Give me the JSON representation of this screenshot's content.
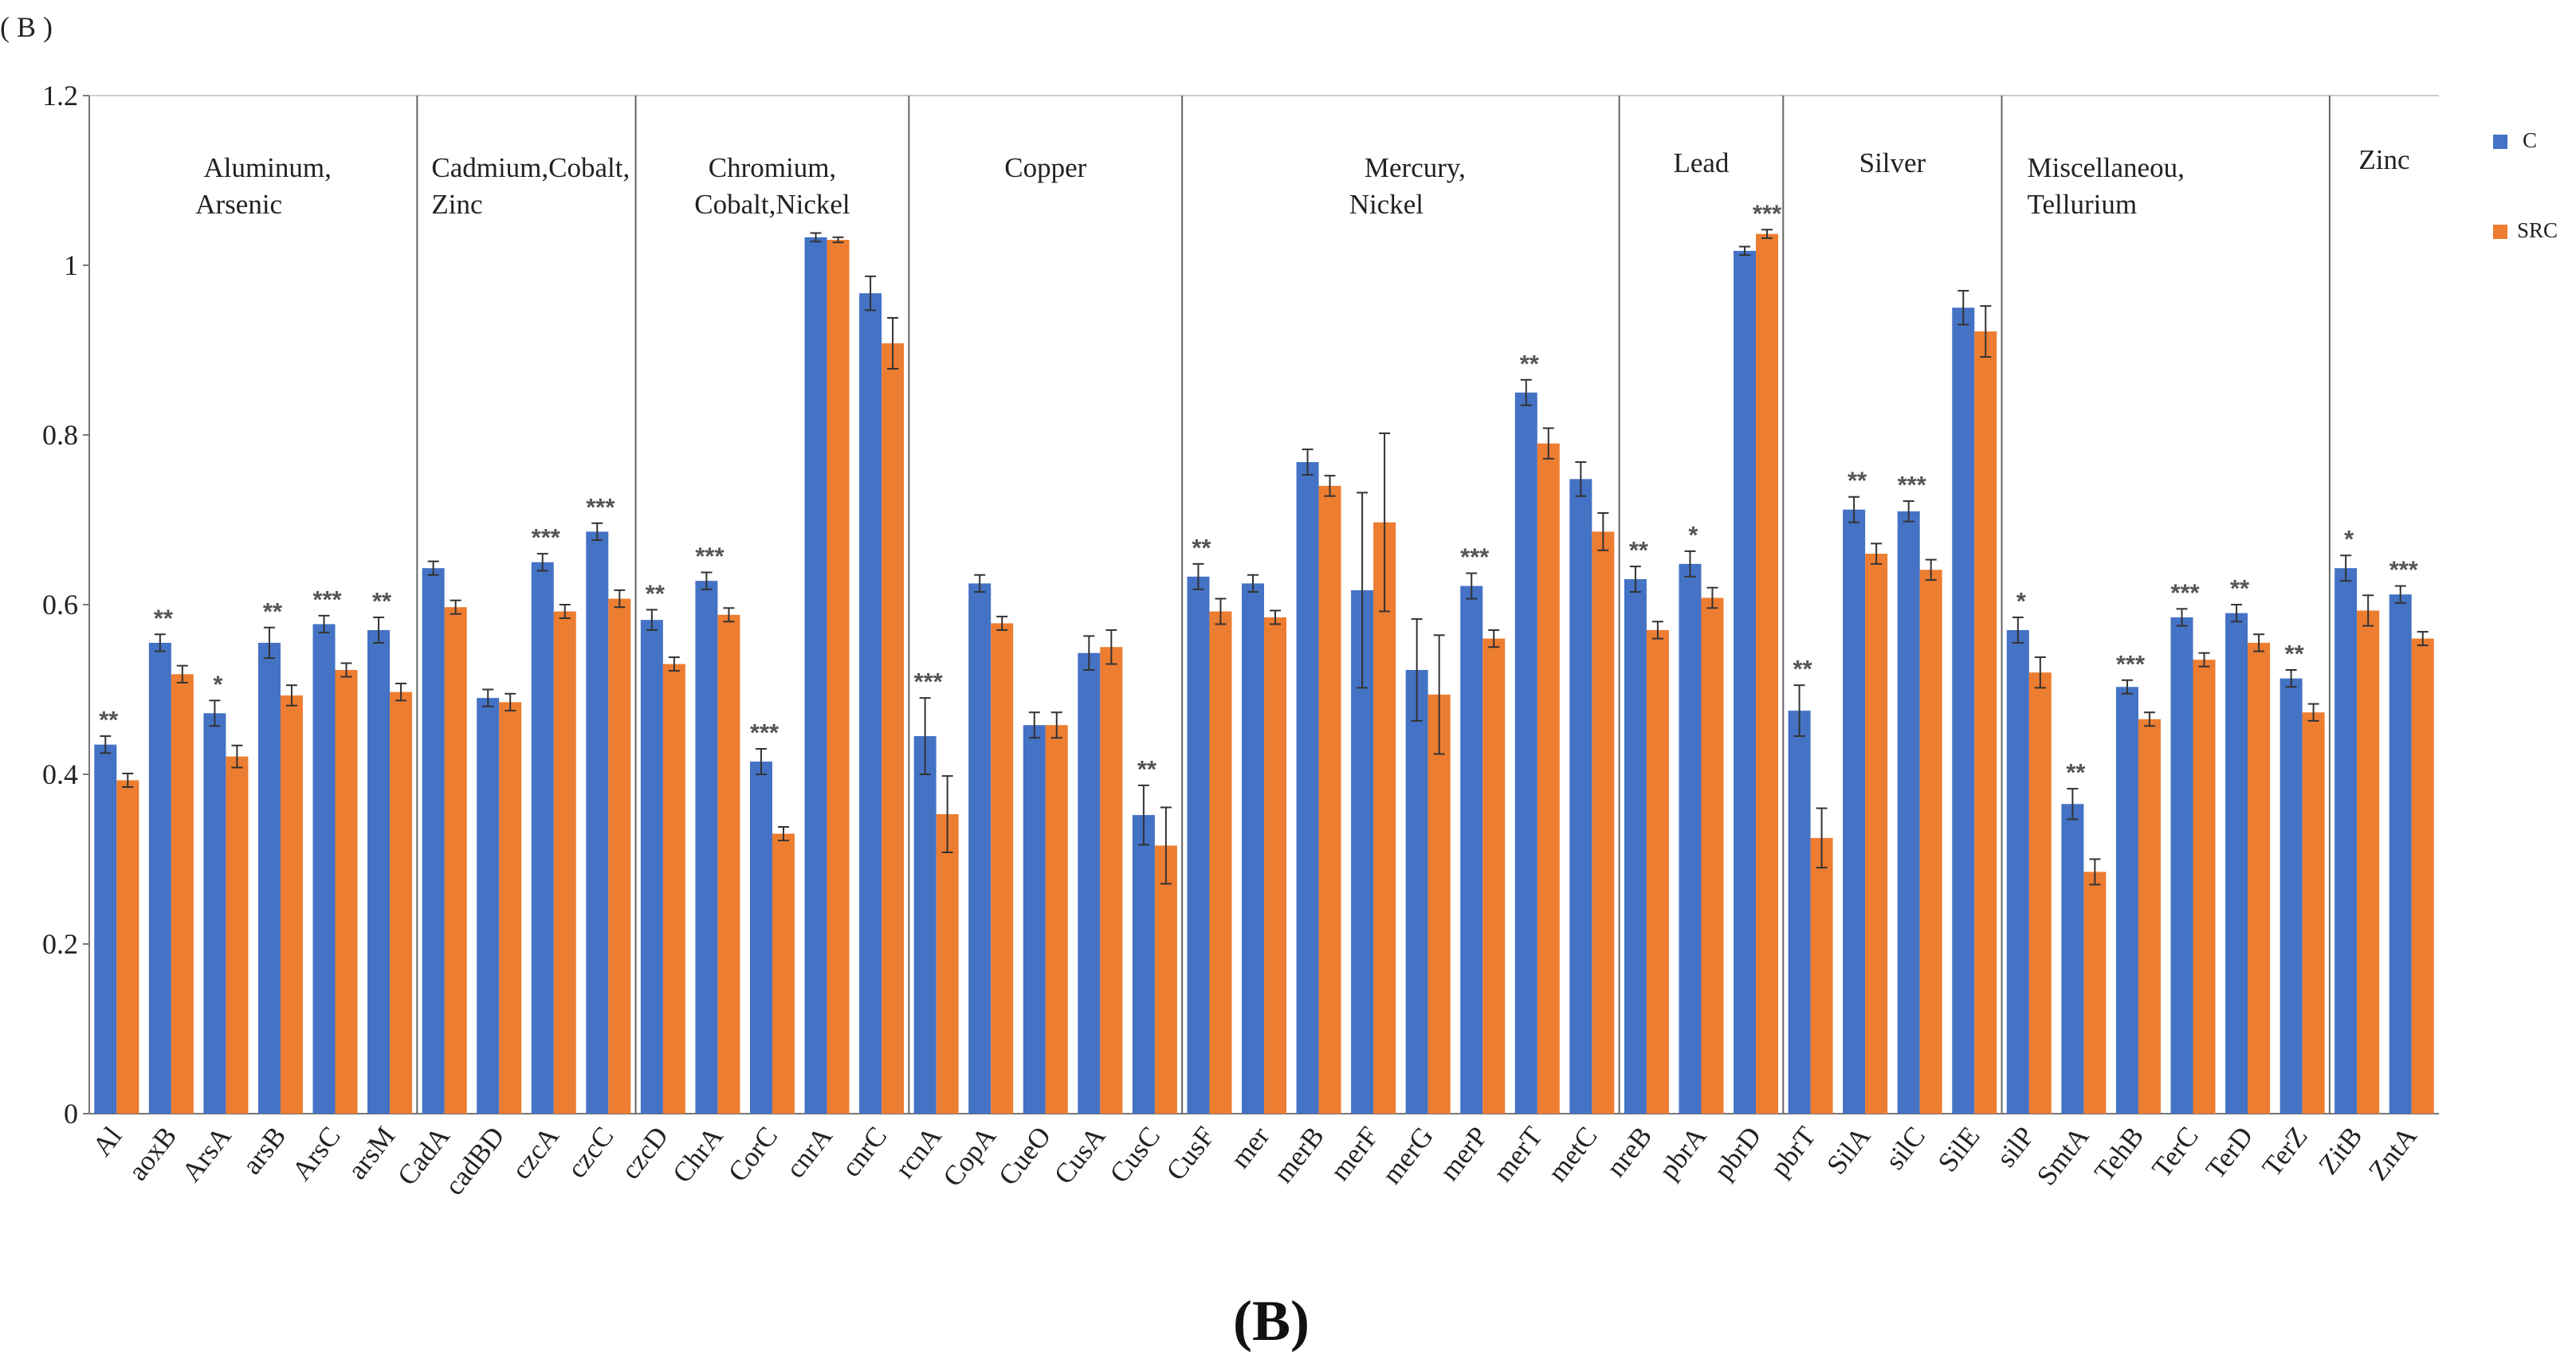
{
  "panel_label": "( B )",
  "caption": "(B)",
  "colors": {
    "C": "#4472c4",
    "SRC": "#ed7d31",
    "sig_default": "#555555",
    "sig_red": "#e8312f"
  },
  "chart_data": {
    "type": "bar",
    "title": "",
    "xlabel": "",
    "ylabel": "",
    "ylim": [
      0,
      1.2
    ],
    "yticks": [
      "0",
      "0.2",
      "0.4",
      "0.6",
      "0.8",
      "1",
      "1.2"
    ],
    "legend": {
      "position": "top-right",
      "entries": [
        "C",
        "SRC"
      ]
    },
    "groups": [
      {
        "lines": [
          "Aluminum,",
          "Arsenic"
        ],
        "start": 0,
        "end": 5
      },
      {
        "lines": [
          "Cadmium,Cobalt,",
          "Zinc"
        ],
        "start": 6,
        "end": 9
      },
      {
        "lines": [
          "Chromium,",
          "Cobalt,Nickel"
        ],
        "start": 10,
        "end": 14
      },
      {
        "lines": [
          "Copper"
        ],
        "start": 15,
        "end": 19
      },
      {
        "lines": [
          "Mercury,",
          "Nickel"
        ],
        "start": 20,
        "end": 27
      },
      {
        "lines": [
          "Lead"
        ],
        "start": 28,
        "end": 30
      },
      {
        "lines": [
          "Silver"
        ],
        "start": 31,
        "end": 34
      },
      {
        "lines": [
          "Miscellaneou,",
          "Tellurium"
        ],
        "start": 35,
        "end": 40
      },
      {
        "lines": [
          "Zinc"
        ],
        "start": 41,
        "end": 42
      }
    ],
    "categories": [
      "Al",
      "aoxB",
      "ArsA",
      "arsB",
      "ArsC",
      "arsM",
      "CadA",
      "cadBD",
      "czcA",
      "czcC",
      "czcD",
      "ChrA",
      "CorC",
      "cnrA",
      "cnrC",
      "rcnA",
      "CopA",
      "CueO",
      "CusA",
      "CusC",
      "CusF",
      "mer",
      "merB",
      "merF",
      "merG",
      "merP",
      "merT",
      "metC",
      "nreB",
      "pbrA",
      "pbrD",
      "pbrT",
      "SilA",
      "silC",
      "SilE",
      "silP",
      "SmtA",
      "TehB",
      "TerC",
      "TerD",
      "TerZ",
      "ZitB",
      "ZntA"
    ],
    "series": [
      {
        "name": "C",
        "values": [
          0.435,
          0.555,
          0.472,
          0.555,
          0.577,
          0.57,
          0.643,
          0.49,
          0.65,
          0.686,
          0.582,
          0.628,
          0.415,
          1.033,
          0.967,
          0.445,
          0.625,
          0.458,
          0.543,
          0.352,
          0.633,
          0.625,
          0.768,
          0.617,
          0.523,
          0.622,
          0.85,
          0.748,
          0.63,
          0.648,
          1.017,
          0.475,
          0.712,
          0.71,
          0.95,
          0.57,
          0.365,
          0.503,
          0.585,
          0.59,
          0.513,
          0.643,
          0.612
        ],
        "errors": [
          0.01,
          0.01,
          0.015,
          0.018,
          0.01,
          0.015,
          0.008,
          0.01,
          0.01,
          0.01,
          0.012,
          0.01,
          0.015,
          0.005,
          0.02,
          0.045,
          0.01,
          0.015,
          0.02,
          0.035,
          0.015,
          0.01,
          0.015,
          0.115,
          0.06,
          0.015,
          0.015,
          0.02,
          0.015,
          0.015,
          0.005,
          0.03,
          0.015,
          0.012,
          0.02,
          0.015,
          0.018,
          0.008,
          0.01,
          0.01,
          0.01,
          0.015,
          0.01
        ]
      },
      {
        "name": "SRC",
        "values": [
          0.393,
          0.518,
          0.421,
          0.493,
          0.523,
          0.497,
          0.597,
          0.485,
          0.592,
          0.607,
          0.53,
          0.588,
          0.33,
          1.03,
          0.908,
          0.353,
          0.578,
          0.458,
          0.55,
          0.316,
          0.592,
          0.585,
          0.74,
          0.697,
          0.494,
          0.56,
          0.79,
          0.686,
          0.57,
          0.608,
          1.037,
          0.325,
          0.66,
          0.641,
          0.922,
          0.52,
          0.285,
          0.465,
          0.535,
          0.555,
          0.473,
          0.593,
          0.56
        ],
        "errors": [
          0.008,
          0.01,
          0.013,
          0.012,
          0.008,
          0.01,
          0.008,
          0.01,
          0.008,
          0.01,
          0.008,
          0.008,
          0.008,
          0.003,
          0.03,
          0.045,
          0.008,
          0.015,
          0.02,
          0.045,
          0.015,
          0.008,
          0.012,
          0.105,
          0.07,
          0.01,
          0.018,
          0.022,
          0.01,
          0.012,
          0.005,
          0.035,
          0.012,
          0.012,
          0.03,
          0.018,
          0.015,
          0.008,
          0.008,
          0.01,
          0.01,
          0.018,
          0.008
        ]
      }
    ],
    "significance": [
      {
        "index": 0,
        "label": "**"
      },
      {
        "index": 1,
        "label": "**"
      },
      {
        "index": 2,
        "label": "*"
      },
      {
        "index": 3,
        "label": "**"
      },
      {
        "index": 4,
        "label": "***"
      },
      {
        "index": 5,
        "label": "**"
      },
      {
        "index": 8,
        "label": "***"
      },
      {
        "index": 9,
        "label": "***"
      },
      {
        "index": 10,
        "label": "**"
      },
      {
        "index": 11,
        "label": "***"
      },
      {
        "index": 12,
        "label": "***"
      },
      {
        "index": 15,
        "label": "***"
      },
      {
        "index": 19,
        "label": "**"
      },
      {
        "index": 20,
        "label": "**"
      },
      {
        "index": 25,
        "label": "***"
      },
      {
        "index": 26,
        "label": "**"
      },
      {
        "index": 28,
        "label": "**"
      },
      {
        "index": 29,
        "label": "*"
      },
      {
        "index": 30,
        "label": "***",
        "red": true
      },
      {
        "index": 31,
        "label": "**"
      },
      {
        "index": 32,
        "label": "**"
      },
      {
        "index": 33,
        "label": "***"
      },
      {
        "index": 35,
        "label": "*"
      },
      {
        "index": 36,
        "label": "**"
      },
      {
        "index": 37,
        "label": "***"
      },
      {
        "index": 38,
        "label": "***"
      },
      {
        "index": 39,
        "label": "**"
      },
      {
        "index": 40,
        "label": "**"
      },
      {
        "index": 41,
        "label": "*"
      },
      {
        "index": 42,
        "label": "***"
      }
    ]
  }
}
